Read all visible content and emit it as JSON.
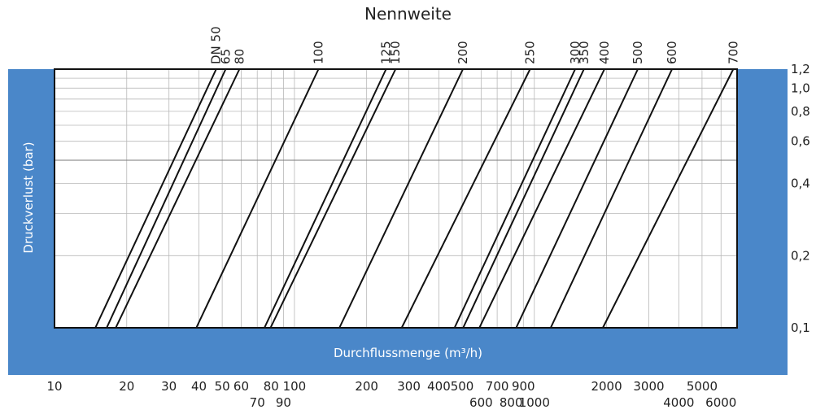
{
  "chart_data": {
    "type": "line",
    "title": "Nennweite",
    "xlabel": "Durchflussmenge (m³/h)",
    "ylabel": "Druckverlust (bar)",
    "xscale": "log",
    "yscale": "log",
    "xlim": [
      10,
      7000
    ],
    "ylim": [
      0.1,
      1.2
    ],
    "grid": true,
    "x_tick_values": [
      10,
      20,
      30,
      40,
      50,
      60,
      70,
      80,
      90,
      100,
      200,
      300,
      400,
      500,
      600,
      700,
      800,
      900,
      1000,
      2000,
      3000,
      4000,
      5000,
      6000
    ],
    "x_tick_labels_row1": [
      {
        "value": 10,
        "label": "10"
      },
      {
        "value": 20,
        "label": "20"
      },
      {
        "value": 30,
        "label": "30"
      },
      {
        "value": 40,
        "label": "40"
      },
      {
        "value": 50,
        "label": "50"
      },
      {
        "value": 60,
        "label": "60"
      },
      {
        "value": 80,
        "label": "80"
      },
      {
        "value": 100,
        "label": "100"
      },
      {
        "value": 200,
        "label": "200"
      },
      {
        "value": 300,
        "label": "300"
      },
      {
        "value": 400,
        "label": "400"
      },
      {
        "value": 500,
        "label": "500"
      },
      {
        "value": 700,
        "label": "700"
      },
      {
        "value": 900,
        "label": "900"
      },
      {
        "value": 2000,
        "label": "2000"
      },
      {
        "value": 3000,
        "label": "3000"
      },
      {
        "value": 5000,
        "label": "5000"
      }
    ],
    "x_tick_labels_row2": [
      {
        "value": 70,
        "label": "70"
      },
      {
        "value": 90,
        "label": "90"
      },
      {
        "value": 600,
        "label": "600"
      },
      {
        "value": 800,
        "label": "800"
      },
      {
        "value": 1000,
        "label": "1000"
      },
      {
        "value": 4000,
        "label": "4000"
      },
      {
        "value": 6000,
        "label": "6000"
      }
    ],
    "y_tick_values": [
      0.1,
      0.2,
      0.3,
      0.4,
      0.5,
      0.6,
      0.7,
      0.8,
      0.9,
      1.0,
      1.1,
      1.2
    ],
    "y_tick_labels": [
      {
        "value": 0.1,
        "label": "0,1"
      },
      {
        "value": 0.2,
        "label": "0,2"
      },
      {
        "value": 0.4,
        "label": "0,4"
      },
      {
        "value": 0.6,
        "label": "0,6"
      },
      {
        "value": 0.8,
        "label": "0,8"
      },
      {
        "value": 1.0,
        "label": "1,0"
      },
      {
        "value": 1.2,
        "label": "1,2"
      }
    ],
    "series": [
      {
        "name": "DN 50",
        "x": [
          14.8,
          47.2
        ],
        "y": [
          0.1,
          1.2
        ]
      },
      {
        "name": "65",
        "x": [
          16.5,
          51.7
        ],
        "y": [
          0.1,
          1.2
        ]
      },
      {
        "name": "80",
        "x": [
          18.0,
          59.0
        ],
        "y": [
          0.1,
          1.2
        ]
      },
      {
        "name": "100",
        "x": [
          39.0,
          126
        ],
        "y": [
          0.1,
          1.2
        ]
      },
      {
        "name": "125",
        "x": [
          75.0,
          241
        ],
        "y": [
          0.1,
          1.2
        ]
      },
      {
        "name": "150",
        "x": [
          79.5,
          264
        ],
        "y": [
          0.1,
          1.2
        ]
      },
      {
        "name": "200",
        "x": [
          154,
          504
        ],
        "y": [
          0.1,
          1.2
        ]
      },
      {
        "name": "250",
        "x": [
          280,
          960
        ],
        "y": [
          0.1,
          1.2
        ]
      },
      {
        "name": "300",
        "x": [
          465,
          1480
        ],
        "y": [
          0.1,
          1.2
        ]
      },
      {
        "name": "350",
        "x": [
          505,
          1610
        ],
        "y": [
          0.1,
          1.2
        ]
      },
      {
        "name": "400",
        "x": [
          590,
          1960
        ],
        "y": [
          0.1,
          1.2
        ]
      },
      {
        "name": "500",
        "x": [
          840,
          2700
        ],
        "y": [
          0.1,
          1.2
        ]
      },
      {
        "name": "600",
        "x": [
          1170,
          3750
        ],
        "y": [
          0.1,
          1.2
        ]
      },
      {
        "name": "700",
        "x": [
          1930,
          6750
        ],
        "y": [
          0.1,
          1.2
        ]
      }
    ]
  }
}
